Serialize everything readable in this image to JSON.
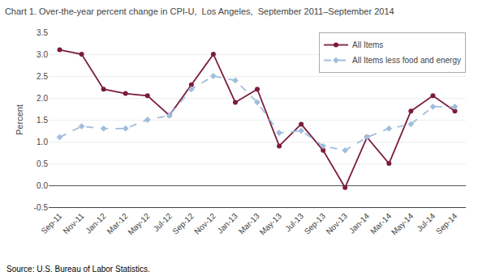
{
  "chart_data": {
    "type": "line",
    "title": "Chart 1. Over-the-year percent change in CPI-U,  Los Angeles,  September 2011–September 2014",
    "y_label": "Percent",
    "annotations": [
      "Source: U.S. Bureau of Labor Statistics."
    ],
    "categories": [
      "Sep-11",
      "Nov-11",
      "Jan-12",
      "Mar-12",
      "May-12",
      "Jul-12",
      "Sep-12",
      "Nov-12",
      "Jan-13",
      "Mar-13",
      "May-13",
      "Jul-13",
      "Sep-13",
      "Nov-13",
      "Jan-14",
      "Mar-14",
      "May-14",
      "Jul-14",
      "Sep-14"
    ],
    "series": [
      {
        "name": "All Items",
        "color": "#7B1C3E",
        "marker": "circle",
        "line_style": "solid",
        "values": [
          3.1,
          3.0,
          2.2,
          2.1,
          2.05,
          1.6,
          2.3,
          3.0,
          1.9,
          2.2,
          0.9,
          1.4,
          0.8,
          -0.05,
          1.1,
          0.5,
          1.7,
          2.05,
          1.7
        ]
      },
      {
        "name": "All Items less food and energy",
        "color": "#A0BEDD",
        "marker": "diamond",
        "line_style": "dashed",
        "values": [
          1.1,
          1.35,
          1.3,
          1.3,
          1.5,
          1.6,
          2.2,
          2.5,
          2.4,
          1.9,
          1.2,
          1.25,
          0.9,
          0.8,
          1.1,
          1.3,
          1.4,
          1.8,
          1.8
        ]
      }
    ],
    "ylim": [
      -0.5,
      3.5
    ],
    "yticks": [
      -0.5,
      {
        "value": 0.0,
        "label": "0.0"
      },
      0.5,
      {
        "value": 1.0,
        "label": "1.0"
      },
      1.5,
      {
        "value": 2.0,
        "label": "2.0"
      },
      2.5,
      {
        "value": 3.0,
        "label": "3.0"
      },
      3.5
    ],
    "grid": true,
    "legend": "upper right"
  }
}
